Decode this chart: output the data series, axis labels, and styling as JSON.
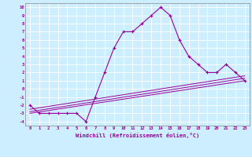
{
  "xlabel": "Windchill (Refroidissement éolien,°C)",
  "bg_color": "#cceeff",
  "line_color": "#990099",
  "xlim": [
    -0.5,
    23.5
  ],
  "ylim": [
    -4.5,
    10.5
  ],
  "xticks": [
    0,
    1,
    2,
    3,
    4,
    5,
    6,
    7,
    8,
    9,
    10,
    11,
    12,
    13,
    14,
    15,
    16,
    17,
    18,
    19,
    20,
    21,
    22,
    23
  ],
  "yticks": [
    -4,
    -3,
    -2,
    -1,
    0,
    1,
    2,
    3,
    4,
    5,
    6,
    7,
    8,
    9,
    10
  ],
  "series1_x": [
    0,
    1,
    2,
    3,
    4,
    5,
    6,
    7,
    8,
    9,
    10,
    11,
    12,
    13,
    14,
    15,
    16,
    17,
    18,
    19,
    20,
    21,
    22,
    23
  ],
  "series1_y": [
    -2,
    -3,
    -3,
    -3,
    -3,
    -3,
    -4,
    -1,
    2,
    5,
    7,
    7,
    8,
    9,
    10,
    9,
    6,
    4,
    3,
    2,
    2,
    3,
    2,
    1
  ],
  "line1_x": [
    0,
    23
  ],
  "line1_y": [
    -3.0,
    1.0
  ],
  "line2_x": [
    0,
    23
  ],
  "line2_y": [
    -2.8,
    1.3
  ],
  "line3_x": [
    0,
    23
  ],
  "line3_y": [
    -2.5,
    1.6
  ]
}
